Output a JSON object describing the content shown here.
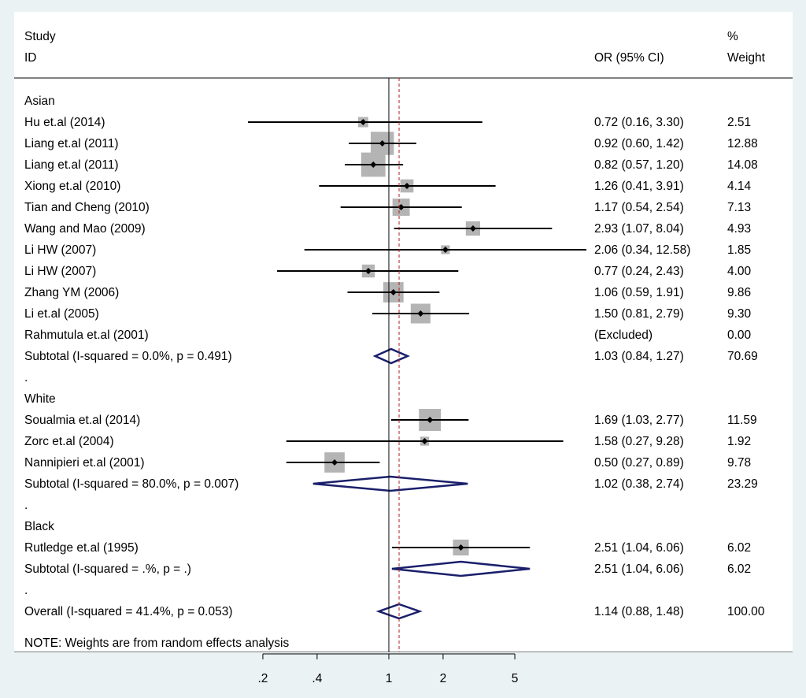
{
  "chart_data": {
    "type": "forest",
    "header": {
      "col1_line1": "Study",
      "col1_line2": "ID",
      "col2": "OR (95% CI)",
      "col3_line1": "%",
      "col3_line2": "Weight"
    },
    "x_scale": "log",
    "x_ticks": [
      {
        "value": 0.2,
        "label": ".2"
      },
      {
        "value": 0.4,
        "label": ".4"
      },
      {
        "value": 1,
        "label": "1"
      },
      {
        "value": 2,
        "label": "2"
      },
      {
        "value": 5,
        "label": "5"
      }
    ],
    "null_line": 1,
    "overall_line": 1.14,
    "rows": [
      {
        "kind": "group",
        "label": "Asian"
      },
      {
        "kind": "study",
        "label": "Hu et.al (2014)",
        "or": 0.72,
        "lo": 0.16,
        "hi": 3.3,
        "ci_text": "0.72 (0.16, 3.30)",
        "weight": 2.51,
        "weight_text": "2.51"
      },
      {
        "kind": "study",
        "label": "Liang et.al (2011)",
        "or": 0.92,
        "lo": 0.6,
        "hi": 1.42,
        "ci_text": "0.92 (0.60, 1.42)",
        "weight": 12.88,
        "weight_text": "12.88"
      },
      {
        "kind": "study",
        "label": "Liang et.al (2011)",
        "or": 0.82,
        "lo": 0.57,
        "hi": 1.2,
        "ci_text": "0.82 (0.57, 1.20)",
        "weight": 14.08,
        "weight_text": "14.08"
      },
      {
        "kind": "study",
        "label": "Xiong et.al (2010)",
        "or": 1.26,
        "lo": 0.41,
        "hi": 3.91,
        "ci_text": "1.26 (0.41, 3.91)",
        "weight": 4.14,
        "weight_text": "4.14"
      },
      {
        "kind": "study",
        "label": "Tian and Cheng (2010)",
        "or": 1.17,
        "lo": 0.54,
        "hi": 2.54,
        "ci_text": "1.17 (0.54, 2.54)",
        "weight": 7.13,
        "weight_text": "7.13"
      },
      {
        "kind": "study",
        "label": "Wang and Mao (2009)",
        "or": 2.93,
        "lo": 1.07,
        "hi": 8.04,
        "ci_text": "2.93 (1.07, 8.04)",
        "weight": 4.93,
        "weight_text": "4.93"
      },
      {
        "kind": "study",
        "label": "Li HW  (2007)",
        "or": 2.06,
        "lo": 0.34,
        "hi": 12.58,
        "ci_text": "2.06 (0.34, 12.58)",
        "weight": 1.85,
        "weight_text": "1.85",
        "clipped": true
      },
      {
        "kind": "study",
        "label": "Li HW  (2007)",
        "or": 0.77,
        "lo": 0.24,
        "hi": 2.43,
        "ci_text": "0.77 (0.24, 2.43)",
        "weight": 4.0,
        "weight_text": "4.00"
      },
      {
        "kind": "study",
        "label": "Zhang YM  (2006)",
        "or": 1.06,
        "lo": 0.59,
        "hi": 1.91,
        "ci_text": "1.06 (0.59, 1.91)",
        "weight": 9.86,
        "weight_text": "9.86"
      },
      {
        "kind": "study",
        "label": "Li et.al (2005)",
        "or": 1.5,
        "lo": 0.81,
        "hi": 2.79,
        "ci_text": "1.50 (0.81, 2.79)",
        "weight": 9.3,
        "weight_text": "9.30"
      },
      {
        "kind": "excluded",
        "label": "Rahmutula et.al (2001)",
        "ci_text": "(Excluded)",
        "weight": 0.0,
        "weight_text": "0.00"
      },
      {
        "kind": "subtotal",
        "label": "Subtotal  (I-squared = 0.0%, p = 0.491)",
        "or": 1.03,
        "lo": 0.84,
        "hi": 1.27,
        "ci_text": "1.03 (0.84, 1.27)",
        "weight": 70.69,
        "weight_text": "70.69"
      },
      {
        "kind": "spacer",
        "label": "."
      },
      {
        "kind": "group",
        "label": "White"
      },
      {
        "kind": "study",
        "label": "Soualmia et.al (2014)",
        "or": 1.69,
        "lo": 1.03,
        "hi": 2.77,
        "ci_text": "1.69 (1.03, 2.77)",
        "weight": 11.59,
        "weight_text": "11.59"
      },
      {
        "kind": "study",
        "label": "Zorc et.al (2004)",
        "or": 1.58,
        "lo": 0.27,
        "hi": 9.28,
        "ci_text": "1.58 (0.27, 9.28)",
        "weight": 1.92,
        "weight_text": "1.92"
      },
      {
        "kind": "study",
        "label": "Nannipieri et.al (2001)",
        "or": 0.5,
        "lo": 0.27,
        "hi": 0.89,
        "ci_text": "0.50 (0.27, 0.89)",
        "weight": 9.78,
        "weight_text": "9.78"
      },
      {
        "kind": "subtotal",
        "label": "Subtotal  (I-squared = 80.0%, p = 0.007)",
        "or": 1.02,
        "lo": 0.38,
        "hi": 2.74,
        "ci_text": "1.02 (0.38, 2.74)",
        "weight": 23.29,
        "weight_text": "23.29"
      },
      {
        "kind": "spacer",
        "label": "."
      },
      {
        "kind": "group",
        "label": "Black"
      },
      {
        "kind": "study",
        "label": "Rutledge et.al (1995)",
        "or": 2.51,
        "lo": 1.04,
        "hi": 6.06,
        "ci_text": "2.51 (1.04, 6.06)",
        "weight": 6.02,
        "weight_text": "6.02"
      },
      {
        "kind": "subtotal",
        "label": "Subtotal  (I-squared = .%, p = .)",
        "or": 2.51,
        "lo": 1.04,
        "hi": 6.06,
        "ci_text": "2.51 (1.04, 6.06)",
        "weight": 6.02,
        "weight_text": "6.02"
      },
      {
        "kind": "spacer",
        "label": "."
      },
      {
        "kind": "overall",
        "label": "Overall  (I-squared = 41.4%, p = 0.053)",
        "or": 1.14,
        "lo": 0.88,
        "hi": 1.48,
        "ci_text": "1.14 (0.88, 1.48)",
        "weight": 100.0,
        "weight_text": "100.00"
      }
    ],
    "note": "NOTE: Weights are from random effects analysis",
    "colors": {
      "background": "#eaf2f3",
      "panel": "#ffffff",
      "box": "#b4b4b4",
      "diamond": "#1a1f6b",
      "overall_line": "#b22222",
      "line": "#000000"
    }
  }
}
